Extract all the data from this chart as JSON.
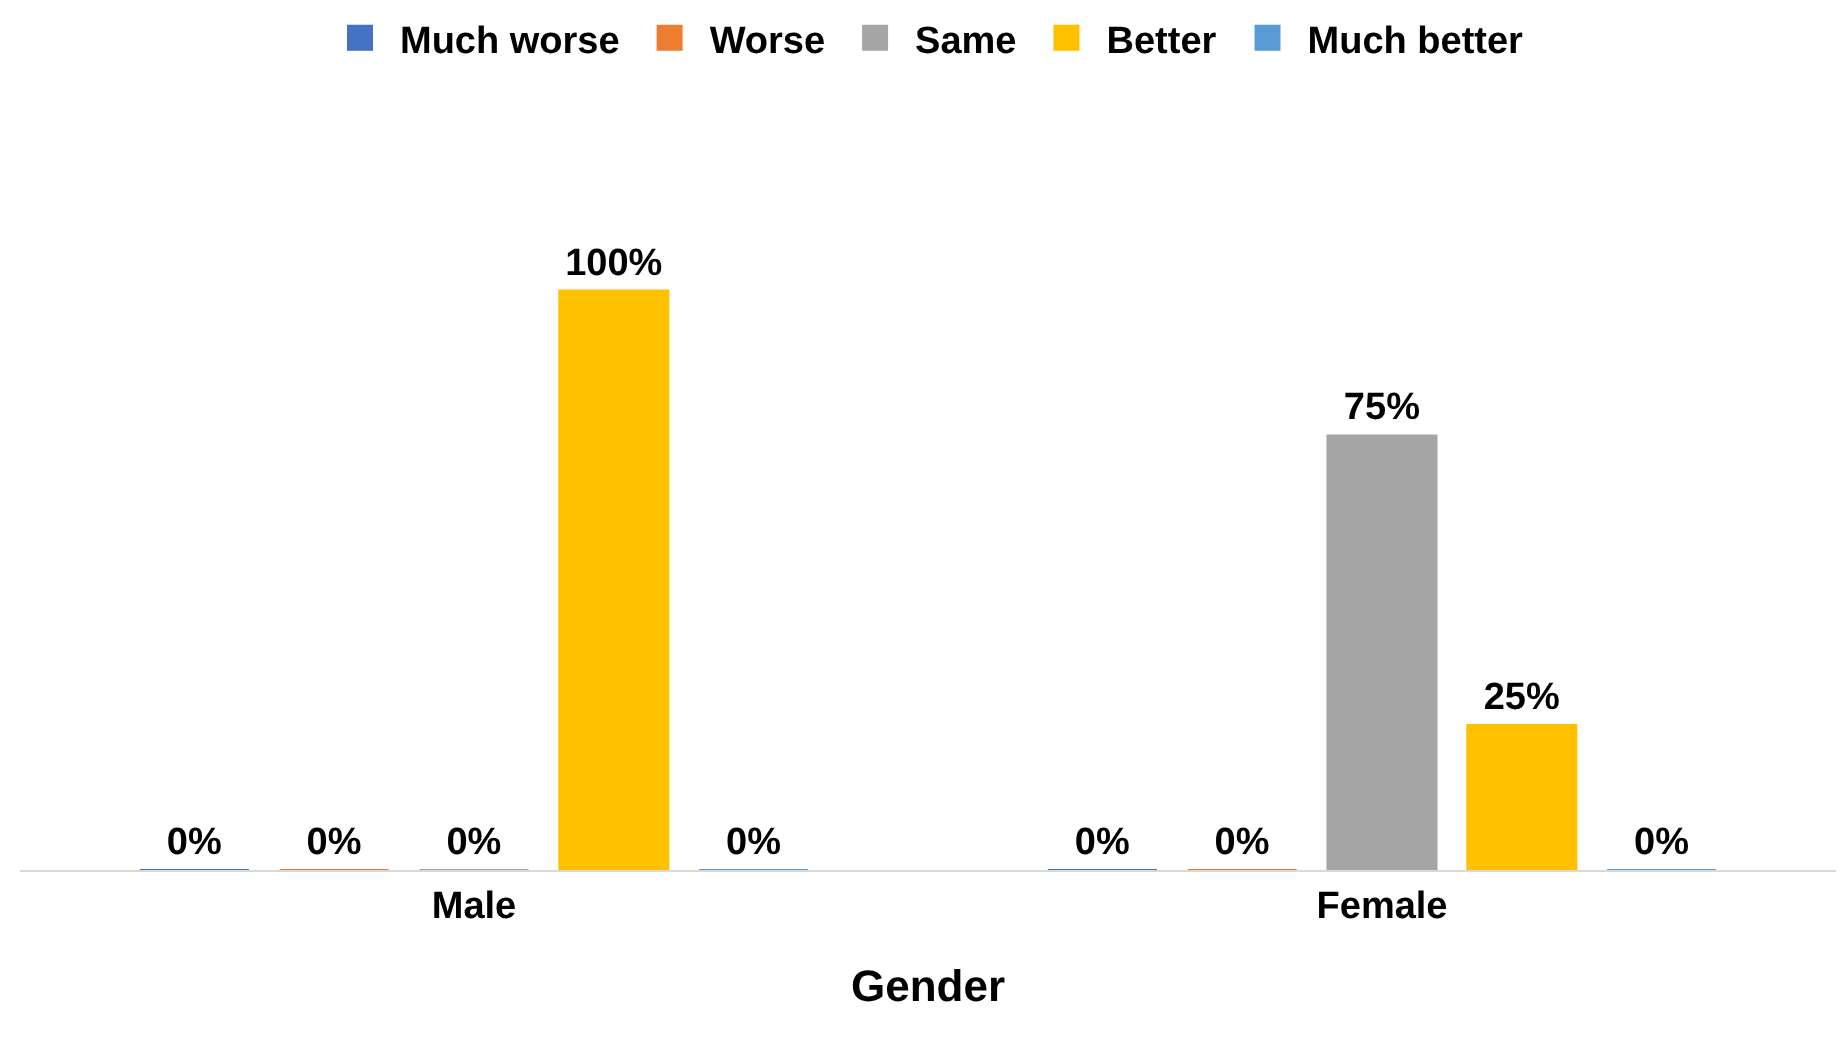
{
  "chart_data": {
    "type": "bar",
    "xlabel": "Gender",
    "categories": [
      "Male",
      "Female"
    ],
    "legend": "top",
    "grid": false,
    "series": [
      {
        "name": "Much worse",
        "color": "#4472c4",
        "values": [
          0,
          0
        ],
        "value_labels": [
          "0%",
          "0%"
        ]
      },
      {
        "name": "Worse",
        "color": "#ed7d31",
        "values": [
          0,
          0
        ],
        "value_labels": [
          "0%",
          "0%"
        ]
      },
      {
        "name": "Same",
        "color": "#a5a5a5",
        "values": [
          0,
          75
        ],
        "value_labels": [
          "0%",
          "75%"
        ]
      },
      {
        "name": "Better",
        "color": "#ffc000",
        "values": [
          100,
          25
        ],
        "value_labels": [
          "100%",
          "25%"
        ]
      },
      {
        "name": "Much better",
        "color": "#5b9bd5",
        "values": [
          0,
          0
        ],
        "value_labels": [
          "0%",
          "0%"
        ]
      }
    ]
  }
}
